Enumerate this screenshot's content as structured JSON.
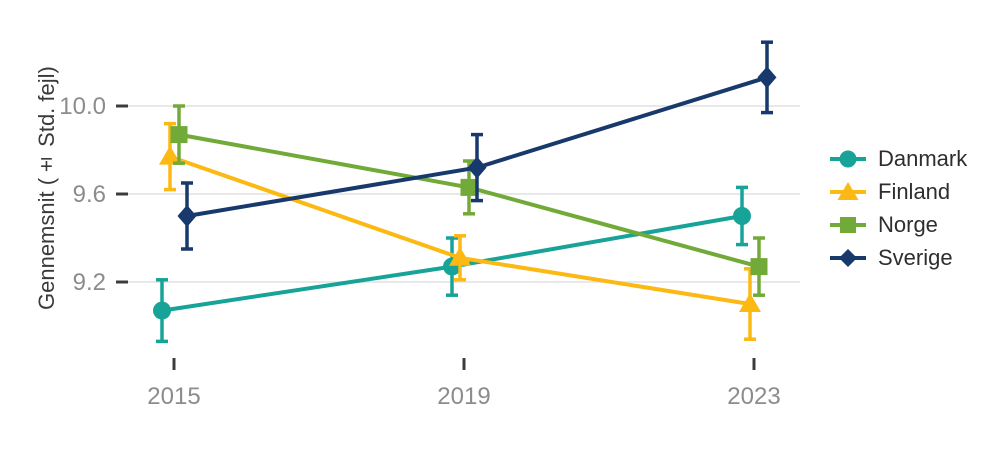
{
  "chart_data": {
    "type": "line",
    "title": "",
    "xlabel": "",
    "ylabel": "Gennemsnit (± Std. fejl)",
    "x": [
      2015,
      2019,
      2023
    ],
    "x_tick_labels": [
      "2015",
      "2019",
      "2023"
    ],
    "y_ticks": [
      9.2,
      9.6,
      10.0
    ],
    "y_tick_labels": [
      "9.2",
      "9.6",
      "10.0"
    ],
    "ylim": [
      8.85,
      10.35
    ],
    "grid": "horizontal-only",
    "legend_position": "right",
    "error_bars": "± standard error, vertical caps",
    "series": [
      {
        "name": "Danmark",
        "marker": "circle",
        "color": "#17A398",
        "values": [
          9.07,
          9.27,
          9.5
        ],
        "se": [
          0.14,
          0.13,
          0.13
        ]
      },
      {
        "name": "Finland",
        "marker": "triangle",
        "color": "#FCB813",
        "values": [
          9.77,
          9.31,
          9.1
        ],
        "se": [
          0.15,
          0.1,
          0.16
        ]
      },
      {
        "name": "Norge",
        "marker": "square",
        "color": "#72AA39",
        "values": [
          9.87,
          9.63,
          9.27
        ],
        "se": [
          0.13,
          0.12,
          0.13
        ]
      },
      {
        "name": "Sverige",
        "marker": "diamond",
        "color": "#17396B",
        "values": [
          9.5,
          9.72,
          10.13
        ],
        "se": [
          0.15,
          0.15,
          0.16
        ]
      }
    ],
    "style_colors": {
      "gridline": "#E8E8E8",
      "tick_mark": "#3C3C3C",
      "tick_label": "#8C8C8C",
      "axis_title": "#3A3A3A",
      "legend_text": "#2E2E2E",
      "background": "#FFFFFF"
    }
  }
}
